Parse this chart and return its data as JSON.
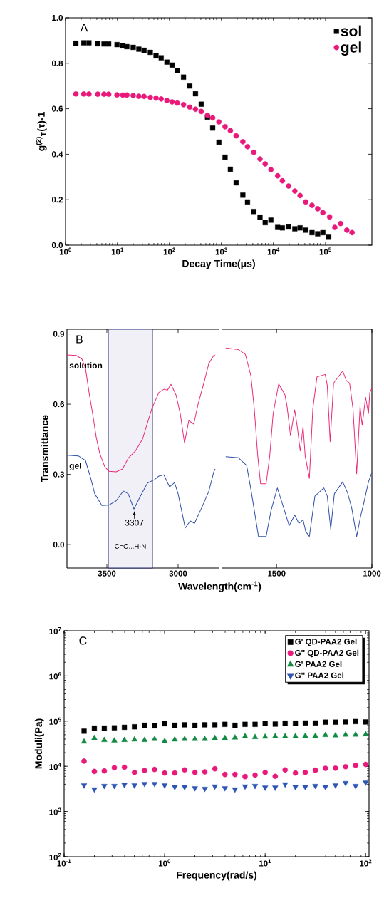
{
  "chart_data": [
    {
      "type": "scatter",
      "annotations": [
        "A"
      ],
      "xlabel": "Decay Time(μs)",
      "ylabel": "g$^{(2)}$$_{T}$(τ)-1",
      "log": "x",
      "xlim": [
        1,
        780000
      ],
      "ylim": [
        0,
        1
      ],
      "xticks": [
        {
          "value": 1,
          "label": "10$^{0}$"
        },
        {
          "value": 10,
          "label": "10$^{1}$"
        },
        {
          "value": 100,
          "label": "10$^{2}$"
        },
        {
          "value": 1000,
          "label": "10$^{3}$"
        },
        {
          "value": 10000,
          "label": "10$^{4}$"
        },
        {
          "value": 100000,
          "label": "10$^{5}$"
        }
      ],
      "yticks": [
        {
          "value": 0,
          "label": "0.0"
        },
        0.2,
        0.4,
        0.6,
        0.8,
        {
          "value": 1,
          "label": "1.0"
        }
      ],
      "legend": "top right",
      "series": [
        {
          "name": "sol",
          "color": "#000000",
          "marker": "square",
          "x": [
            1.58,
            2.24,
            2.82,
            4.17,
            5.5,
            6.76,
            9.77,
            12.6,
            15.1,
            20,
            25.7,
            32.4,
            42.7,
            55,
            69.2,
            89.1,
            112,
            141,
            186,
            245,
            316,
            407,
            537,
            676,
            891,
            1170,
            1480,
            1910,
            2570,
            3160,
            4170,
            5500,
            6920,
            8910,
            12000,
            14800,
            19500,
            25700,
            32400,
            41700,
            55000,
            70800,
            89100,
            115000
          ],
          "values": [
            0.888,
            0.89,
            0.89,
            0.886,
            0.885,
            0.885,
            0.882,
            0.877,
            0.873,
            0.87,
            0.862,
            0.857,
            0.848,
            0.833,
            0.824,
            0.805,
            0.792,
            0.768,
            0.739,
            0.7,
            0.666,
            0.62,
            0.563,
            0.515,
            0.453,
            0.387,
            0.334,
            0.274,
            0.22,
            0.19,
            0.148,
            0.123,
            0.099,
            0.11,
            0.078,
            0.076,
            0.08,
            0.072,
            0.076,
            0.066,
            0.055,
            0.05,
            0.055,
            0.035
          ]
        },
        {
          "name": "gel",
          "color": "#e8197a",
          "marker": "circle",
          "x": [
            1.58,
            2.24,
            2.82,
            4.17,
            5.5,
            6.76,
            9.77,
            12.6,
            15.1,
            20,
            25.7,
            32.4,
            42.7,
            55,
            69.2,
            89.1,
            112,
            141,
            186,
            245,
            316,
            407,
            537,
            676,
            891,
            1170,
            1480,
            1910,
            2570,
            3160,
            4170,
            5500,
            6920,
            8910,
            12000,
            14800,
            19500,
            25700,
            32400,
            41700,
            55000,
            70800,
            89100,
            120000,
            151000,
            195000,
            257000,
            324000
          ],
          "values": [
            0.665,
            0.665,
            0.665,
            0.664,
            0.664,
            0.664,
            0.661,
            0.66,
            0.66,
            0.658,
            0.655,
            0.654,
            0.65,
            0.647,
            0.643,
            0.636,
            0.63,
            0.625,
            0.618,
            0.607,
            0.598,
            0.588,
            0.571,
            0.56,
            0.542,
            0.521,
            0.504,
            0.481,
            0.455,
            0.433,
            0.408,
            0.379,
            0.357,
            0.332,
            0.305,
            0.283,
            0.26,
            0.238,
            0.218,
            0.19,
            0.175,
            0.16,
            0.143,
            0.124,
            0.078,
            0.095,
            0.066,
            0.055
          ]
        }
      ]
    },
    {
      "type": "line",
      "annotations": [
        "B",
        {
          "text": "3307",
          "x": 3307,
          "y": 0.15
        }
      ],
      "xlabel": "Wavelength(cm$^{-1}$)",
      "ylabel": "Transmittance",
      "xlim": [
        3780,
        2715
      ],
      "ylim": [
        -0.1,
        0.92
      ],
      "xticks": [
        3500,
        3000
      ],
      "yticks": [
        {
          "value": 0,
          "label": "0.0"
        },
        0.3,
        0.6,
        0.9
      ],
      "line_style": "solid",
      "bands": [
        {
          "axis": "x",
          "from": 3490,
          "to": 3180,
          "label": "C=O...H-N",
          "color": "#2b2d7a"
        }
      ],
      "series": [
        {
          "name": "solution",
          "color": "#ec2a78",
          "x": [
            3780,
            3715,
            3675,
            3650,
            3625,
            3600,
            3575,
            3550,
            3515,
            3485,
            3435,
            3390,
            3350,
            3300,
            3250,
            3185,
            3135,
            3100,
            3075,
            3050,
            3015,
            2985,
            2955,
            2925,
            2890,
            2860,
            2815,
            2785,
            2750,
            2740
          ],
          "values": [
            0.81,
            0.808,
            0.793,
            0.753,
            0.65,
            0.56,
            0.46,
            0.39,
            0.333,
            0.313,
            0.311,
            0.323,
            0.369,
            0.4,
            0.45,
            0.58,
            0.65,
            0.664,
            0.66,
            0.685,
            0.64,
            0.56,
            0.434,
            0.53,
            0.515,
            0.6,
            0.7,
            0.773,
            0.808,
            0.81
          ]
        },
        {
          "name": "gel",
          "color": "#3050a8",
          "x": [
            3780,
            3700,
            3650,
            3615,
            3585,
            3535,
            3485,
            3435,
            3385,
            3350,
            3310,
            3265,
            3215,
            3165,
            3135,
            3100,
            3060,
            3025,
            3000,
            2950,
            2915,
            2885,
            2835,
            2785,
            2750,
            2740
          ],
          "values": [
            0.382,
            0.379,
            0.359,
            0.288,
            0.217,
            0.167,
            0.169,
            0.187,
            0.229,
            0.217,
            0.152,
            0.207,
            0.263,
            0.278,
            0.293,
            0.298,
            0.247,
            0.265,
            0.217,
            0.071,
            0.101,
            0.091,
            0.157,
            0.227,
            0.31,
            0.323
          ]
        }
      ]
    },
    {
      "type": "line",
      "xlim": [
        1785,
        1000
      ],
      "ylim": [
        -0.1,
        0.92
      ],
      "xticks": [
        1500,
        1000
      ],
      "tick_labels": "x",
      "line_style": "solid",
      "series": [
        {
          "color": "#ec2a78",
          "x": [
            1767,
            1700,
            1664,
            1635,
            1617,
            1599,
            1584,
            1555,
            1536,
            1518,
            1489,
            1456,
            1445,
            1427,
            1405,
            1391,
            1376,
            1361,
            1350,
            1328,
            1310,
            1288,
            1245,
            1234,
            1219,
            1201,
            1153,
            1135,
            1117,
            1099,
            1080,
            1062,
            1051,
            1033,
            1018,
            1011,
            1000
          ],
          "values": [
            0.84,
            0.833,
            0.813,
            0.722,
            0.58,
            0.379,
            0.26,
            0.26,
            0.379,
            0.56,
            0.687,
            0.64,
            0.59,
            0.465,
            0.576,
            0.5,
            0.4,
            0.505,
            0.379,
            0.283,
            0.58,
            0.717,
            0.727,
            0.68,
            0.44,
            0.69,
            0.742,
            0.702,
            0.69,
            0.58,
            0.303,
            0.59,
            0.51,
            0.63,
            0.56,
            0.65,
            0.667
          ]
        },
        {
          "color": "#3050a8",
          "x": [
            1767,
            1700,
            1657,
            1635,
            1617,
            1595,
            1555,
            1529,
            1496,
            1463,
            1434,
            1405,
            1383,
            1361,
            1347,
            1328,
            1299,
            1252,
            1234,
            1216,
            1197,
            1153,
            1128,
            1106,
            1080,
            1058,
            1044,
            1018,
            1000
          ],
          "values": [
            0.376,
            0.371,
            0.338,
            0.237,
            0.146,
            0.035,
            0.035,
            0.146,
            0.242,
            0.157,
            0.081,
            0.126,
            0.091,
            0.106,
            0.056,
            0.035,
            0.207,
            0.242,
            0.207,
            0.066,
            0.217,
            0.268,
            0.222,
            0.157,
            0.035,
            0.126,
            0.172,
            0.268,
            0.308
          ]
        }
      ]
    },
    {
      "type": "scatter",
      "annotations": [
        "C"
      ],
      "xlabel": "Frequency(rad/s)",
      "ylabel": "Moduli(Pa)",
      "log": "xy",
      "xlim": [
        0.1,
        108
      ],
      "ylim": [
        100,
        10000000
      ],
      "xticks": [
        {
          "value": 0.1,
          "label": "10$^{-1}$"
        },
        {
          "value": 1,
          "label": "10$^{0}$"
        },
        {
          "value": 10,
          "label": "10$^{1}$"
        },
        {
          "value": 100,
          "label": "10$^{2}$"
        }
      ],
      "yticks": [
        {
          "value": 100,
          "label": "10$^{2}$"
        },
        {
          "value": 1000,
          "label": "10$^{3}$"
        },
        {
          "value": 10000,
          "label": "10$^{4}$"
        },
        {
          "value": 100000,
          "label": "10$^{5}$"
        },
        {
          "value": 1000000,
          "label": "10$^{6}$"
        },
        {
          "value": 10000000,
          "label": "10$^{7}$"
        }
      ],
      "legend": "top right",
      "x": [
        0.158,
        0.2,
        0.251,
        0.316,
        0.398,
        0.501,
        0.631,
        0.794,
        1,
        1.26,
        1.58,
        2,
        2.51,
        3.16,
        3.98,
        5.01,
        6.31,
        7.94,
        10,
        12.6,
        15.8,
        20,
        25.1,
        31.6,
        39.8,
        50.1,
        63.1,
        79.4,
        100
      ],
      "series": [
        {
          "name": "G' QD-PAA2 Gel",
          "color": "#000000",
          "marker": "square",
          "values": [
            60000,
            70000,
            70000,
            71000,
            73000,
            75000,
            81000,
            79000,
            88000,
            81000,
            83000,
            81000,
            83000,
            83000,
            85000,
            81000,
            85000,
            85000,
            89000,
            86000,
            90000,
            90000,
            91000,
            91000,
            95000,
            95000,
            96000,
            98000,
            96000
          ]
        },
        {
          "name": "G'' QD-PAA2 Gel",
          "color": "#e8197a",
          "marker": "circle",
          "values": [
            13000,
            7700,
            7900,
            9300,
            9500,
            7300,
            8100,
            8500,
            7100,
            7100,
            8300,
            7300,
            7500,
            8800,
            6600,
            6600,
            5900,
            6400,
            7300,
            6000,
            8300,
            7100,
            7300,
            8200,
            9000,
            9100,
            9800,
            10500,
            11000
          ]
        },
        {
          "name": "G' PAA2 Gel",
          "color": "#138a43",
          "marker": "triangle",
          "values": [
            35000,
            42000,
            38000,
            37000,
            38000,
            39000,
            38000,
            40000,
            36000,
            39000,
            40000,
            40000,
            40000,
            42000,
            42000,
            43000,
            46000,
            44000,
            45000,
            46000,
            46000,
            46000,
            47000,
            47000,
            49000,
            48000,
            50000,
            50000,
            51000
          ]
        },
        {
          "name": "G'' PAA2 Gel",
          "color": "#2e55b4",
          "marker": "triangle-down",
          "values": [
            3800,
            3100,
            3700,
            3700,
            3900,
            3800,
            4100,
            4100,
            3800,
            3500,
            3500,
            3300,
            3200,
            3600,
            3300,
            3100,
            3600,
            3700,
            3400,
            3400,
            4000,
            3500,
            3500,
            3700,
            3500,
            3800,
            4300,
            3700,
            4400
          ]
        }
      ]
    }
  ]
}
